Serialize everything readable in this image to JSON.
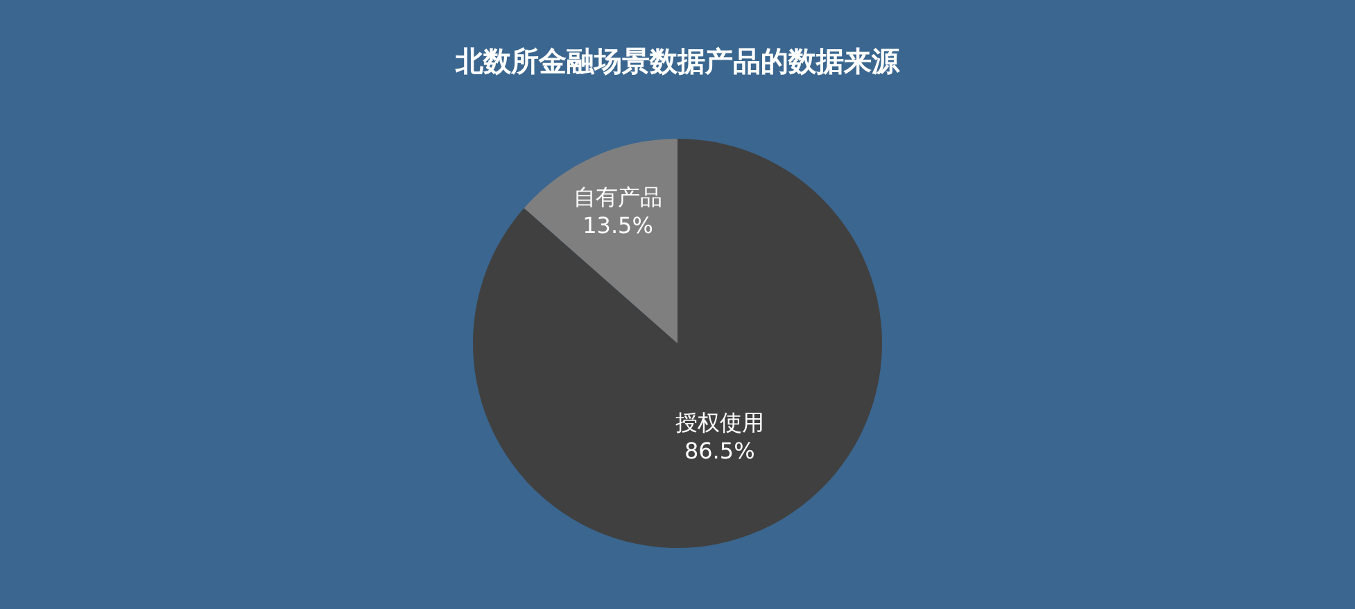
{
  "chart_data": {
    "type": "pie",
    "title": "北数所金融场景数据产品的数据来源",
    "categories": [
      "授权使用",
      "自有产品"
    ],
    "values": [
      86.5,
      13.5
    ],
    "colors": [
      "#404040",
      "#7f7f7f"
    ],
    "value_labels": [
      "86.5%",
      "13.5%"
    ]
  }
}
